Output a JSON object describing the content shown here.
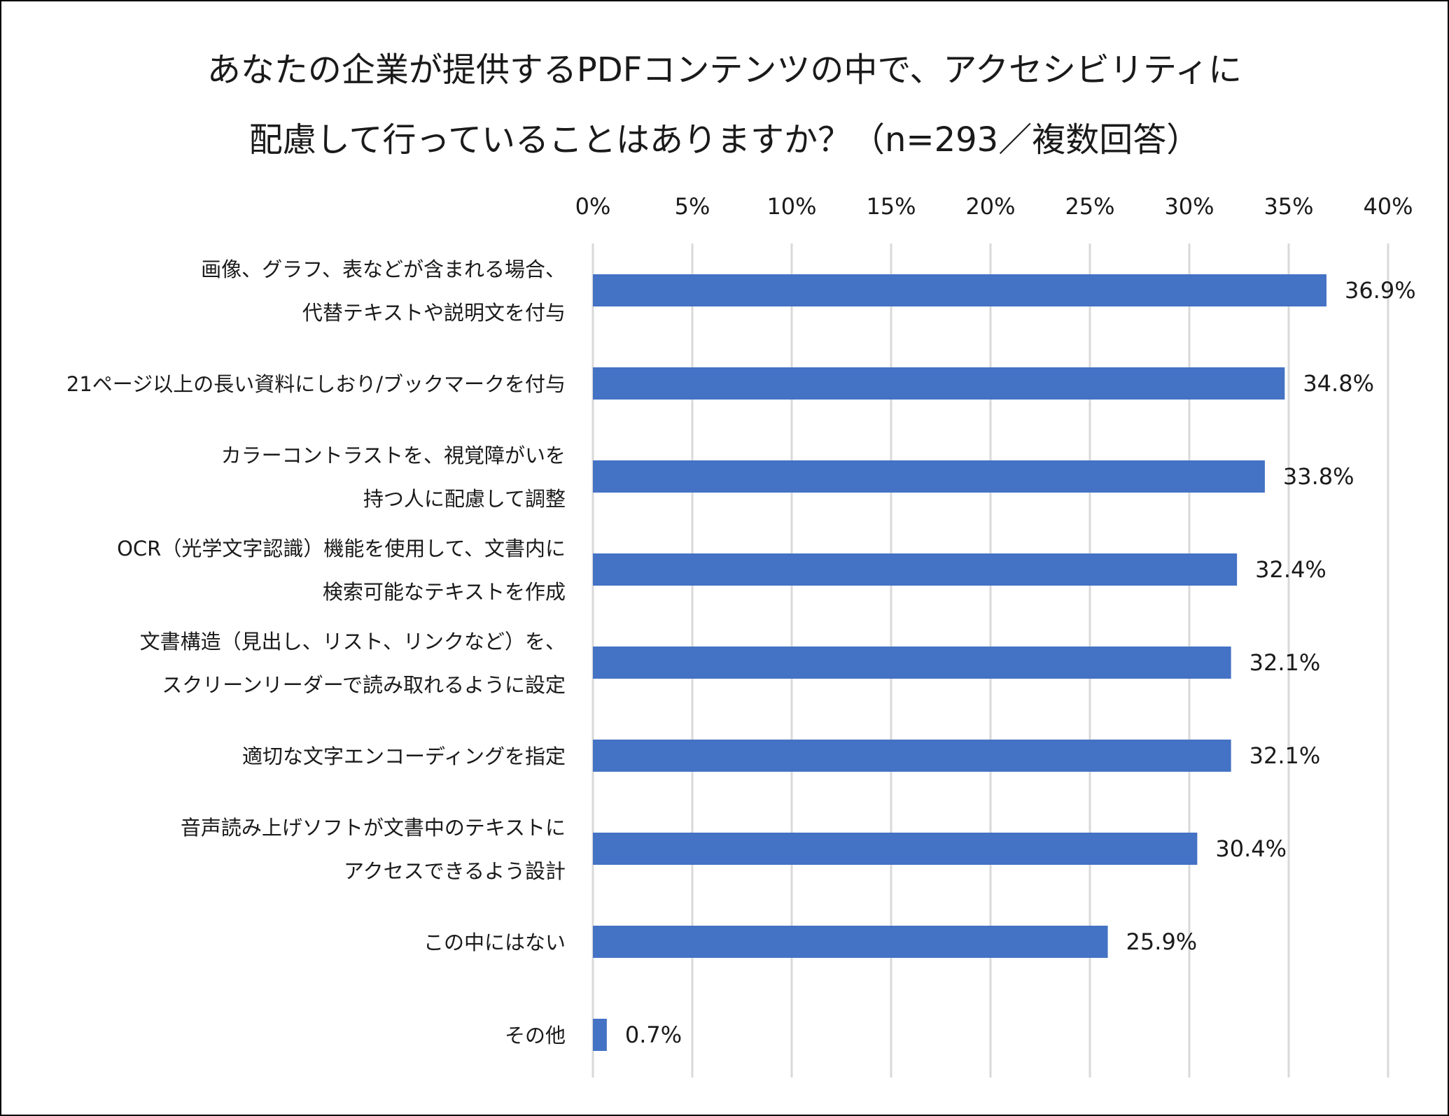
{
  "chart_data": {
    "type": "bar",
    "orientation": "horizontal",
    "title": [
      "あなたの企業が提供するPDFコンテンツの中で、アクセシビリティに",
      "配慮して行っていることはありますか？（n=293／複数回答）"
    ],
    "xlim": [
      0,
      40
    ],
    "x_ticks": [
      0,
      5,
      10,
      15,
      20,
      25,
      30,
      35,
      40
    ],
    "x_tick_labels": [
      "0%",
      "5%",
      "10%",
      "15%",
      "20%",
      "25%",
      "30%",
      "35%",
      "40%"
    ],
    "grid": true,
    "bar_color": "#4472C4",
    "categories": [
      [
        "画像、グラフ、表などが含まれる場合、",
        "代替テキストや説明文を付与"
      ],
      [
        "21ページ以上の長い資料にしおり/ブックマークを付与"
      ],
      [
        "カラーコントラストを、視覚障がいを",
        "持つ人に配慮して調整"
      ],
      [
        "OCR（光学文字認識）機能を使用して、文書内に",
        "検索可能なテキストを作成"
      ],
      [
        "文書構造（見出し、リスト、リンクなど）を、",
        "スクリーンリーダーで読み取れるように設定"
      ],
      [
        "適切な文字エンコーディングを指定"
      ],
      [
        "音声読み上げソフトが文書中のテキストに",
        "アクセスできるよう設計"
      ],
      [
        "この中にはない"
      ],
      [
        "その他"
      ]
    ],
    "values": [
      36.9,
      34.8,
      33.8,
      32.4,
      32.1,
      32.1,
      30.4,
      25.9,
      0.7
    ],
    "value_labels": [
      "36.9%",
      "34.8%",
      "33.8%",
      "32.4%",
      "32.1%",
      "32.1%",
      "30.4%",
      "25.9%",
      "0.7%"
    ]
  }
}
